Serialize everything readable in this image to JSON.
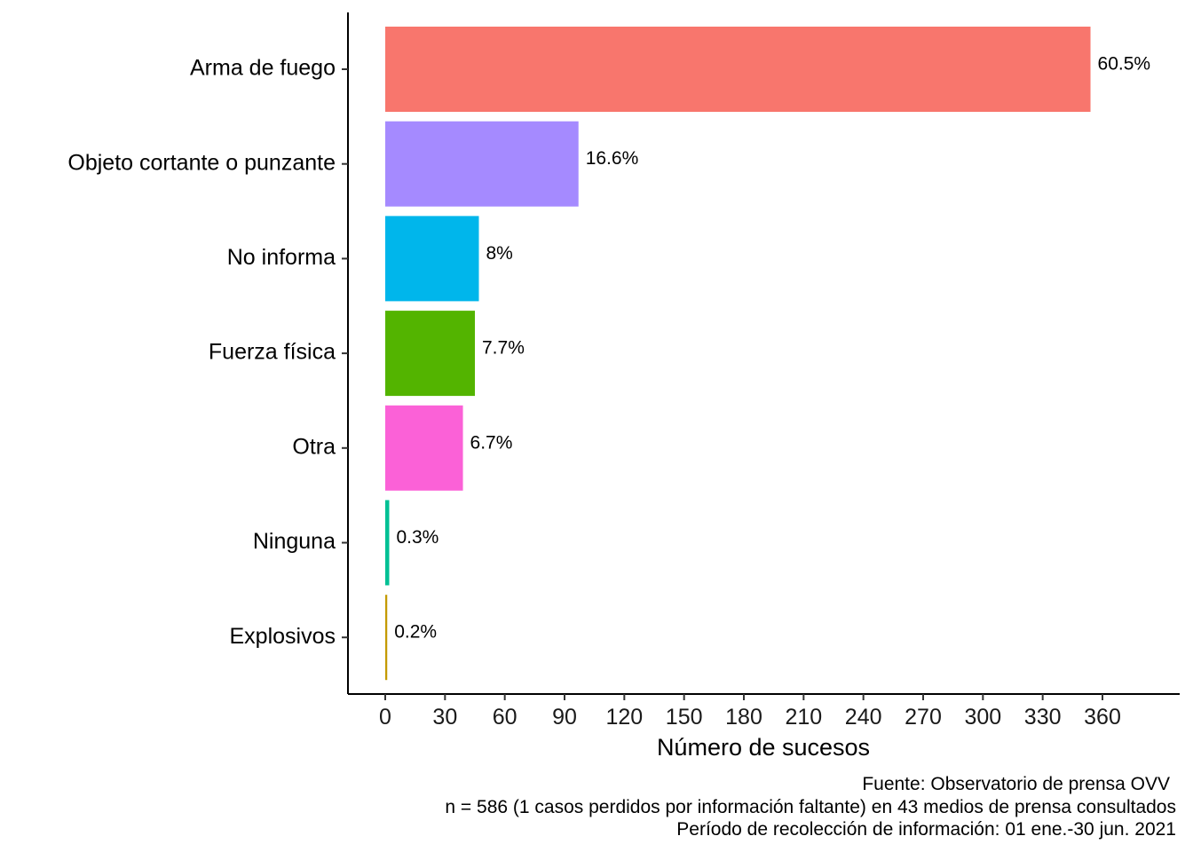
{
  "chart_data": {
    "type": "bar",
    "orientation": "horizontal",
    "title": "",
    "xlabel": "Número de sucesos",
    "ylabel": "",
    "xlim": [
      0,
      400
    ],
    "xticks": [
      0,
      30,
      60,
      90,
      120,
      150,
      180,
      210,
      240,
      270,
      300,
      330,
      360
    ],
    "xtick_labels": [
      "0",
      "30",
      "60",
      "90",
      "120",
      "150",
      "180",
      "210",
      "240",
      "270",
      "300",
      "330",
      "360"
    ],
    "grid": false,
    "legend": "none",
    "categories": [
      "Arma de fuego",
      "Objeto cortante o punzante",
      "No informa",
      "Fuerza física",
      "Otra",
      "Ninguna",
      "Explosivos"
    ],
    "values": [
      354,
      97,
      47,
      45,
      39,
      2,
      1
    ],
    "labels": [
      "60.5%",
      "16.6%",
      "8%",
      "7.7%",
      "6.7%",
      "0.3%",
      "0.2%"
    ],
    "colors": [
      "#F8766D",
      "#A58AFF",
      "#00B6EB",
      "#53B400",
      "#FB61D7",
      "#00C094",
      "#C49A00"
    ],
    "caption": [
      "Fuente: Observatorio de prensa OVV",
      "n = 586 (1 casos perdidos por información faltante) en 43 medios de prensa consultados",
      "Período de recolección de información: 01 ene.-30 jun. 2021"
    ]
  }
}
